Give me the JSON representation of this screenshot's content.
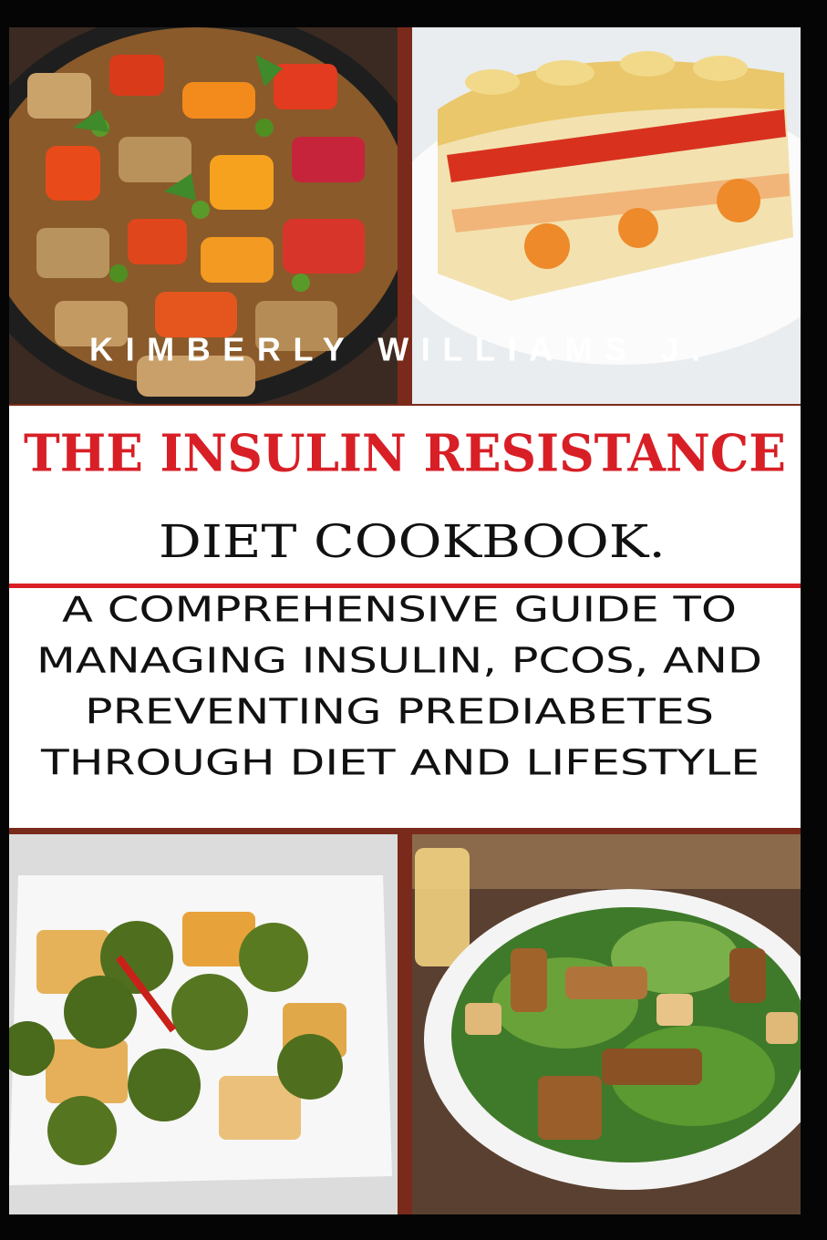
{
  "cover": {
    "author": "KIMBERLY WILLIAMS J.",
    "title": [
      "THE INSULIN RESISTANCE",
      "DIET COOKBOOK."
    ],
    "subtitle": [
      "A COMPREHENSIVE GUIDE TO",
      "MANAGING INSULIN, PCOS, AND",
      "PREVENTING PREDIABETES",
      "THROUGH DIET AND LIFESTYLE"
    ]
  }
}
